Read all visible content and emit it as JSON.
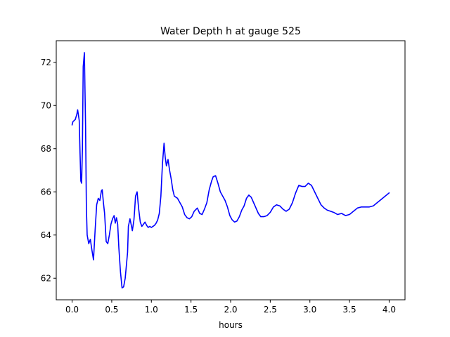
{
  "chart_data": {
    "type": "line",
    "title": "Water Depth h at gauge 525",
    "xlabel": "hours",
    "ylabel": "",
    "xlim": [
      -0.2,
      4.2
    ],
    "ylim": [
      61.0,
      73.0
    ],
    "x_ticks": [
      0.0,
      0.5,
      1.0,
      1.5,
      2.0,
      2.5,
      3.0,
      3.5,
      4.0
    ],
    "x_tick_labels": [
      "0.0",
      "0.5",
      "1.0",
      "1.5",
      "2.0",
      "2.5",
      "3.0",
      "3.5",
      "4.0"
    ],
    "y_ticks": [
      62,
      64,
      66,
      68,
      70,
      72
    ],
    "y_tick_labels": [
      "62",
      "64",
      "66",
      "68",
      "70",
      "72"
    ],
    "grid": false,
    "series": [
      {
        "color": "#0000ff",
        "x": [
          0.0,
          0.01,
          0.04,
          0.06,
          0.07,
          0.09,
          0.1,
          0.11,
          0.12,
          0.13,
          0.14,
          0.155,
          0.17,
          0.18,
          0.19,
          0.21,
          0.23,
          0.25,
          0.27,
          0.29,
          0.31,
          0.33,
          0.35,
          0.37,
          0.38,
          0.395,
          0.41,
          0.43,
          0.45,
          0.47,
          0.49,
          0.51,
          0.53,
          0.545,
          0.56,
          0.575,
          0.59,
          0.61,
          0.63,
          0.65,
          0.67,
          0.69,
          0.7,
          0.71,
          0.73,
          0.75,
          0.76,
          0.78,
          0.79,
          0.8,
          0.82,
          0.83,
          0.84,
          0.86,
          0.88,
          0.9,
          0.92,
          0.94,
          0.96,
          0.98,
          1.0,
          1.02,
          1.04,
          1.06,
          1.08,
          1.1,
          1.12,
          1.14,
          1.16,
          1.175,
          1.19,
          1.21,
          1.23,
          1.25,
          1.27,
          1.29,
          1.31,
          1.33,
          1.36,
          1.39,
          1.42,
          1.45,
          1.48,
          1.51,
          1.54,
          1.58,
          1.61,
          1.64,
          1.67,
          1.7,
          1.73,
          1.76,
          1.78,
          1.81,
          1.84,
          1.87,
          1.9,
          1.93,
          1.96,
          1.99,
          2.02,
          2.05,
          2.08,
          2.11,
          2.14,
          2.17,
          2.2,
          2.23,
          2.26,
          2.29,
          2.32,
          2.35,
          2.38,
          2.42,
          2.46,
          2.5,
          2.54,
          2.58,
          2.62,
          2.66,
          2.7,
          2.74,
          2.78,
          2.82,
          2.86,
          2.9,
          2.94,
          2.98,
          3.02,
          3.06,
          3.1,
          3.14,
          3.18,
          3.22,
          3.26,
          3.3,
          3.35,
          3.4,
          3.45,
          3.5,
          3.55,
          3.6,
          3.65,
          3.7,
          3.75,
          3.8,
          3.85,
          3.9,
          3.95,
          4.0
        ],
        "y": [
          69.1,
          69.25,
          69.35,
          69.6,
          69.8,
          69.3,
          67.8,
          66.5,
          66.4,
          68.0,
          71.8,
          72.45,
          69.0,
          65.3,
          64.0,
          63.6,
          63.8,
          63.3,
          62.85,
          64.2,
          65.4,
          65.7,
          65.6,
          66.05,
          66.1,
          65.5,
          65.0,
          63.7,
          63.6,
          64.0,
          64.5,
          64.75,
          64.9,
          64.55,
          64.8,
          64.5,
          63.4,
          62.3,
          61.55,
          61.6,
          62.0,
          62.8,
          63.2,
          64.4,
          64.75,
          64.4,
          64.2,
          64.7,
          65.2,
          65.8,
          66.0,
          65.6,
          65.2,
          64.6,
          64.4,
          64.5,
          64.6,
          64.45,
          64.35,
          64.4,
          64.35,
          64.4,
          64.45,
          64.55,
          64.7,
          65.0,
          65.8,
          67.3,
          68.25,
          67.6,
          67.2,
          67.5,
          67.0,
          66.6,
          66.1,
          65.8,
          65.75,
          65.7,
          65.5,
          65.3,
          64.95,
          64.8,
          64.75,
          64.85,
          65.1,
          65.25,
          65.0,
          64.95,
          65.2,
          65.5,
          66.1,
          66.5,
          66.7,
          66.75,
          66.4,
          66.0,
          65.8,
          65.6,
          65.3,
          64.9,
          64.7,
          64.6,
          64.65,
          64.85,
          65.15,
          65.35,
          65.7,
          65.85,
          65.75,
          65.5,
          65.25,
          65.0,
          64.85,
          64.85,
          64.9,
          65.05,
          65.3,
          65.4,
          65.35,
          65.2,
          65.1,
          65.2,
          65.5,
          65.95,
          66.3,
          66.25,
          66.25,
          66.4,
          66.3,
          66.0,
          65.7,
          65.4,
          65.25,
          65.15,
          65.1,
          65.05,
          64.95,
          65.0,
          64.9,
          64.95,
          65.1,
          65.25,
          65.3,
          65.3,
          65.3,
          65.35,
          65.5,
          65.65,
          65.8,
          65.95
        ]
      }
    ]
  }
}
